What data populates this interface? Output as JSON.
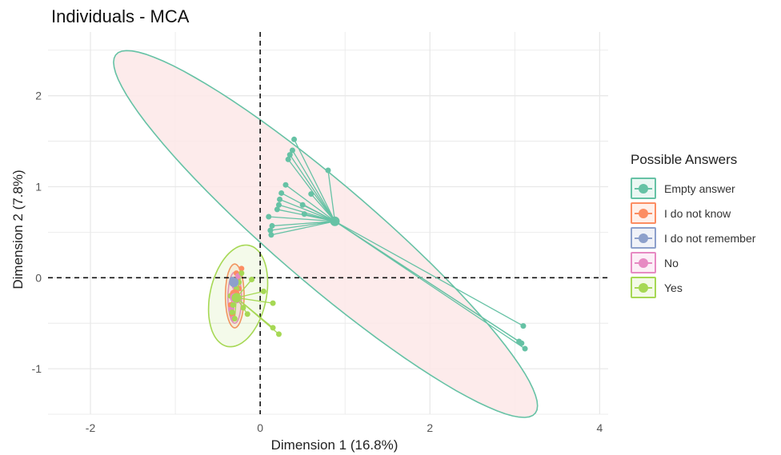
{
  "title": "Individuals - MCA",
  "chart_data": {
    "type": "scatter",
    "title": "Individuals - MCA",
    "xlabel": "Dimension 1 (16.8%)",
    "ylabel": "Dimension 2 (7.8%)",
    "xlim": [
      -2.5,
      4.1
    ],
    "ylim": [
      -1.5,
      2.7
    ],
    "x_ticks": [
      -2,
      0,
      2,
      4
    ],
    "y_ticks": [
      -1,
      0,
      1,
      2
    ],
    "grid": true,
    "reference_lines": {
      "x": 0,
      "y": 0,
      "style": "dashed"
    },
    "legend_title": "Possible Answers",
    "legend_position": "right",
    "series": [
      {
        "name": "Empty answer",
        "color": "#66C2A5",
        "centroid": [
          0.88,
          0.62
        ],
        "ellipse_fill": "#FDE8E8",
        "ellipse": {
          "cx": 0.77,
          "cy": 0.48,
          "rx": 3.16,
          "ry": 0.56,
          "angle_deg": -38.5
        },
        "points": [
          [
            0.4,
            1.52
          ],
          [
            0.38,
            1.4
          ],
          [
            0.35,
            1.35
          ],
          [
            0.33,
            1.3
          ],
          [
            0.8,
            1.18
          ],
          [
            0.3,
            1.02
          ],
          [
            0.6,
            0.92
          ],
          [
            0.25,
            0.93
          ],
          [
            0.23,
            0.86
          ],
          [
            0.22,
            0.8
          ],
          [
            0.5,
            0.8
          ],
          [
            0.2,
            0.75
          ],
          [
            0.52,
            0.7
          ],
          [
            0.1,
            0.67
          ],
          [
            0.14,
            0.57
          ],
          [
            0.12,
            0.52
          ],
          [
            0.13,
            0.47
          ],
          [
            3.1,
            -0.53
          ],
          [
            3.05,
            -0.7
          ],
          [
            3.08,
            -0.72
          ],
          [
            3.12,
            -0.78
          ]
        ]
      },
      {
        "name": "I do not know",
        "color": "#FC8D62",
        "centroid": [
          -0.3,
          -0.18
        ],
        "ellipse": {
          "cx": -0.3,
          "cy": -0.2,
          "rx": 0.11,
          "ry": 0.35,
          "angle_deg": 0
        },
        "points": [
          [
            -0.33,
            -0.4
          ],
          [
            -0.28,
            0.05
          ],
          [
            -0.25,
            -0.12
          ],
          [
            -0.35,
            -0.3
          ],
          [
            -0.22,
            0.1
          ]
        ]
      },
      {
        "name": "I do not remember",
        "color": "#8DA0CB",
        "centroid": [
          -0.31,
          -0.05
        ],
        "points": [
          [
            -0.31,
            -0.05
          ],
          [
            -0.33,
            -0.02
          ]
        ]
      },
      {
        "name": "No",
        "color": "#E78AC3",
        "centroid": [
          -0.3,
          -0.22
        ],
        "ellipse": {
          "cx": -0.3,
          "cy": -0.22,
          "rx": 0.08,
          "ry": 0.28,
          "angle_deg": 0
        },
        "points": [
          [
            -0.34,
            -0.35
          ],
          [
            -0.3,
            -0.1
          ],
          [
            -0.27,
            -0.25
          ],
          [
            -0.32,
            -0.45
          ],
          [
            -0.26,
            0.02
          ]
        ]
      },
      {
        "name": "Yes",
        "color": "#A6D854",
        "centroid": [
          -0.28,
          -0.22
        ],
        "ellipse": {
          "cx": -0.26,
          "cy": -0.2,
          "rx": 0.33,
          "ry": 0.57,
          "angle_deg": -14
        },
        "points": [
          [
            0.22,
            -0.62
          ],
          [
            0.15,
            -0.55
          ],
          [
            0.15,
            -0.28
          ],
          [
            0.04,
            -0.15
          ],
          [
            -0.1,
            -0.02
          ],
          [
            -0.15,
            -0.4
          ],
          [
            -0.2,
            -0.33
          ],
          [
            -0.3,
            -0.45
          ],
          [
            -0.33,
            -0.38
          ],
          [
            -0.35,
            -0.2
          ],
          [
            -0.22,
            0.05
          ],
          [
            -0.25,
            -0.05
          ],
          [
            -0.32,
            -0.3
          ],
          [
            -0.28,
            -0.12
          ]
        ]
      }
    ]
  }
}
